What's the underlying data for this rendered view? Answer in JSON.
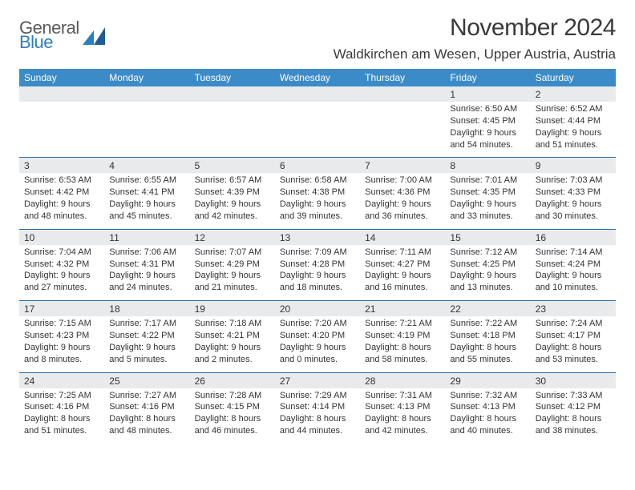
{
  "brand": {
    "top": "General",
    "bottom": "Blue",
    "top_color": "#5a5a5a",
    "bottom_color": "#2b7fc3"
  },
  "title": "November 2024",
  "location": "Waldkirchen am Wesen, Upper Austria, Austria",
  "colors": {
    "header_bg": "#3b8bc9",
    "header_text": "#ffffff",
    "daynum_bg": "#e8eaec",
    "rule": "#2b6fa8",
    "text": "#333333",
    "bg": "#ffffff"
  },
  "typography": {
    "title_fontsize": 30,
    "location_fontsize": 17,
    "header_fontsize": 12,
    "body_fontsize": 11
  },
  "day_headers": [
    "Sunday",
    "Monday",
    "Tuesday",
    "Wednesday",
    "Thursday",
    "Friday",
    "Saturday"
  ],
  "weeks": [
    [
      null,
      null,
      null,
      null,
      null,
      {
        "n": "1",
        "sunrise": "Sunrise: 6:50 AM",
        "sunset": "Sunset: 4:45 PM",
        "daylight": "Daylight: 9 hours and 54 minutes."
      },
      {
        "n": "2",
        "sunrise": "Sunrise: 6:52 AM",
        "sunset": "Sunset: 4:44 PM",
        "daylight": "Daylight: 9 hours and 51 minutes."
      }
    ],
    [
      {
        "n": "3",
        "sunrise": "Sunrise: 6:53 AM",
        "sunset": "Sunset: 4:42 PM",
        "daylight": "Daylight: 9 hours and 48 minutes."
      },
      {
        "n": "4",
        "sunrise": "Sunrise: 6:55 AM",
        "sunset": "Sunset: 4:41 PM",
        "daylight": "Daylight: 9 hours and 45 minutes."
      },
      {
        "n": "5",
        "sunrise": "Sunrise: 6:57 AM",
        "sunset": "Sunset: 4:39 PM",
        "daylight": "Daylight: 9 hours and 42 minutes."
      },
      {
        "n": "6",
        "sunrise": "Sunrise: 6:58 AM",
        "sunset": "Sunset: 4:38 PM",
        "daylight": "Daylight: 9 hours and 39 minutes."
      },
      {
        "n": "7",
        "sunrise": "Sunrise: 7:00 AM",
        "sunset": "Sunset: 4:36 PM",
        "daylight": "Daylight: 9 hours and 36 minutes."
      },
      {
        "n": "8",
        "sunrise": "Sunrise: 7:01 AM",
        "sunset": "Sunset: 4:35 PM",
        "daylight": "Daylight: 9 hours and 33 minutes."
      },
      {
        "n": "9",
        "sunrise": "Sunrise: 7:03 AM",
        "sunset": "Sunset: 4:33 PM",
        "daylight": "Daylight: 9 hours and 30 minutes."
      }
    ],
    [
      {
        "n": "10",
        "sunrise": "Sunrise: 7:04 AM",
        "sunset": "Sunset: 4:32 PM",
        "daylight": "Daylight: 9 hours and 27 minutes."
      },
      {
        "n": "11",
        "sunrise": "Sunrise: 7:06 AM",
        "sunset": "Sunset: 4:31 PM",
        "daylight": "Daylight: 9 hours and 24 minutes."
      },
      {
        "n": "12",
        "sunrise": "Sunrise: 7:07 AM",
        "sunset": "Sunset: 4:29 PM",
        "daylight": "Daylight: 9 hours and 21 minutes."
      },
      {
        "n": "13",
        "sunrise": "Sunrise: 7:09 AM",
        "sunset": "Sunset: 4:28 PM",
        "daylight": "Daylight: 9 hours and 18 minutes."
      },
      {
        "n": "14",
        "sunrise": "Sunrise: 7:11 AM",
        "sunset": "Sunset: 4:27 PM",
        "daylight": "Daylight: 9 hours and 16 minutes."
      },
      {
        "n": "15",
        "sunrise": "Sunrise: 7:12 AM",
        "sunset": "Sunset: 4:25 PM",
        "daylight": "Daylight: 9 hours and 13 minutes."
      },
      {
        "n": "16",
        "sunrise": "Sunrise: 7:14 AM",
        "sunset": "Sunset: 4:24 PM",
        "daylight": "Daylight: 9 hours and 10 minutes."
      }
    ],
    [
      {
        "n": "17",
        "sunrise": "Sunrise: 7:15 AM",
        "sunset": "Sunset: 4:23 PM",
        "daylight": "Daylight: 9 hours and 8 minutes."
      },
      {
        "n": "18",
        "sunrise": "Sunrise: 7:17 AM",
        "sunset": "Sunset: 4:22 PM",
        "daylight": "Daylight: 9 hours and 5 minutes."
      },
      {
        "n": "19",
        "sunrise": "Sunrise: 7:18 AM",
        "sunset": "Sunset: 4:21 PM",
        "daylight": "Daylight: 9 hours and 2 minutes."
      },
      {
        "n": "20",
        "sunrise": "Sunrise: 7:20 AM",
        "sunset": "Sunset: 4:20 PM",
        "daylight": "Daylight: 9 hours and 0 minutes."
      },
      {
        "n": "21",
        "sunrise": "Sunrise: 7:21 AM",
        "sunset": "Sunset: 4:19 PM",
        "daylight": "Daylight: 8 hours and 58 minutes."
      },
      {
        "n": "22",
        "sunrise": "Sunrise: 7:22 AM",
        "sunset": "Sunset: 4:18 PM",
        "daylight": "Daylight: 8 hours and 55 minutes."
      },
      {
        "n": "23",
        "sunrise": "Sunrise: 7:24 AM",
        "sunset": "Sunset: 4:17 PM",
        "daylight": "Daylight: 8 hours and 53 minutes."
      }
    ],
    [
      {
        "n": "24",
        "sunrise": "Sunrise: 7:25 AM",
        "sunset": "Sunset: 4:16 PM",
        "daylight": "Daylight: 8 hours and 51 minutes."
      },
      {
        "n": "25",
        "sunrise": "Sunrise: 7:27 AM",
        "sunset": "Sunset: 4:16 PM",
        "daylight": "Daylight: 8 hours and 48 minutes."
      },
      {
        "n": "26",
        "sunrise": "Sunrise: 7:28 AM",
        "sunset": "Sunset: 4:15 PM",
        "daylight": "Daylight: 8 hours and 46 minutes."
      },
      {
        "n": "27",
        "sunrise": "Sunrise: 7:29 AM",
        "sunset": "Sunset: 4:14 PM",
        "daylight": "Daylight: 8 hours and 44 minutes."
      },
      {
        "n": "28",
        "sunrise": "Sunrise: 7:31 AM",
        "sunset": "Sunset: 4:13 PM",
        "daylight": "Daylight: 8 hours and 42 minutes."
      },
      {
        "n": "29",
        "sunrise": "Sunrise: 7:32 AM",
        "sunset": "Sunset: 4:13 PM",
        "daylight": "Daylight: 8 hours and 40 minutes."
      },
      {
        "n": "30",
        "sunrise": "Sunrise: 7:33 AM",
        "sunset": "Sunset: 4:12 PM",
        "daylight": "Daylight: 8 hours and 38 minutes."
      }
    ]
  ]
}
